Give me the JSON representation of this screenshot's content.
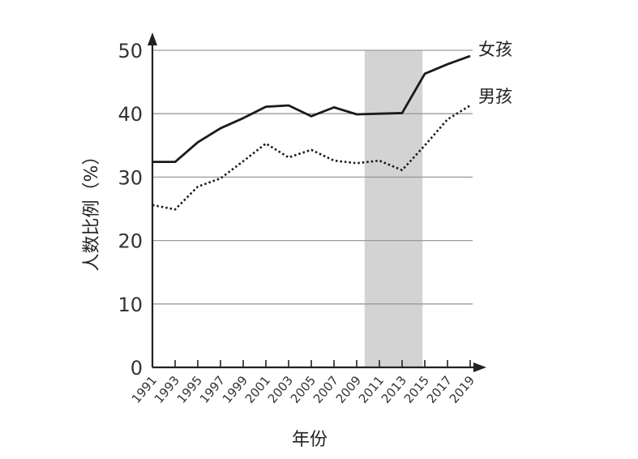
{
  "chart_data": {
    "type": "line",
    "xlabel": "年份",
    "ylabel": "人数比例（%）",
    "ylim": [
      0,
      50
    ],
    "yticks": [
      "0",
      "10",
      "20",
      "30",
      "40",
      "50"
    ],
    "x": [
      1991,
      1993,
      1995,
      1997,
      1999,
      2001,
      2003,
      2005,
      2007,
      2009,
      2011,
      2013,
      2015,
      2017,
      2019
    ],
    "x_labels": [
      "1991",
      "1993",
      "1995",
      "1997",
      "1999",
      "2001",
      "2003",
      "2005",
      "2007",
      "2009",
      "2011",
      "2013",
      "2015",
      "2017",
      "2019"
    ],
    "grid": "horizontal",
    "shaded_range": [
      2009.7,
      2014.8
    ],
    "series": [
      {
        "name": "女孩",
        "style": "solid",
        "color": "#1a1a1a",
        "values": [
          32.4,
          32.4,
          35.5,
          37.7,
          39.3,
          41.1,
          41.3,
          39.6,
          41.0,
          39.9,
          40.0,
          40.1,
          46.3,
          47.8,
          49.1
        ]
      },
      {
        "name": "男孩",
        "style": "dotted",
        "color": "#1a1a1a",
        "values": [
          25.6,
          24.9,
          28.5,
          29.8,
          32.5,
          35.3,
          33.1,
          34.3,
          32.6,
          32.2,
          32.6,
          31.1,
          35.0,
          39.1,
          41.3
        ]
      }
    ]
  }
}
